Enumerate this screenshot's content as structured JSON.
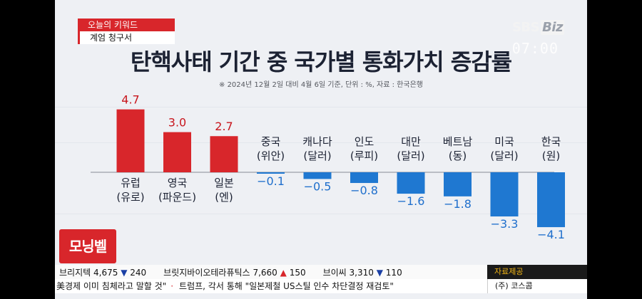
{
  "broadcast": {
    "keyword_label": "오늘의 키워드",
    "keyword": "계엄 청구서",
    "logo": "SBS",
    "logo_biz": "Biz",
    "clock": "07:00",
    "segment": "모닝벨"
  },
  "chart_data": {
    "type": "bar",
    "title": "탄핵사태 기간 중 국가별 통화가치 증감률",
    "note": "※ 2024년 12월 2일 대비 4월 6일 기준, 단위 : %, 자료 : 한국은행",
    "unit": "%",
    "categories": [
      {
        "line1": "유럽",
        "line2": "(유로)"
      },
      {
        "line1": "영국",
        "line2": "(파운드)"
      },
      {
        "line1": "일본",
        "line2": "(엔)"
      },
      {
        "line1": "중국",
        "line2": "(위안)"
      },
      {
        "line1": "캐나다",
        "line2": "(달러)"
      },
      {
        "line1": "인도",
        "line2": "(루피)"
      },
      {
        "line1": "대만",
        "line2": "(달러)"
      },
      {
        "line1": "베트남",
        "line2": "(동)"
      },
      {
        "line1": "미국",
        "line2": "(달러)"
      },
      {
        "line1": "한국",
        "line2": "(원)"
      }
    ],
    "values": [
      4.7,
      3.0,
      2.7,
      -0.1,
      -0.5,
      -0.8,
      -1.6,
      -1.8,
      -3.3,
      -4.1
    ],
    "value_labels": [
      "4.7",
      "3.0",
      "2.7",
      "−0.1",
      "−0.5",
      "−0.8",
      "−1.6",
      "−1.8",
      "−3.3",
      "−4.1"
    ],
    "colors": {
      "positive": "#d8262b",
      "negative": "#1f78d1",
      "positive_text": "#c8161d",
      "negative_text": "#1f6fcc"
    },
    "ylim": [
      -4.1,
      4.7
    ]
  },
  "ticker": {
    "items": [
      {
        "name": "브리지텍",
        "price": "4,675",
        "dir": "▼",
        "change": "240"
      },
      {
        "name": "브릿지바이오테라퓨틱스",
        "price": "7,660",
        "dir": "▲",
        "change": "150"
      },
      {
        "name": "브이씨",
        "price": "3,310",
        "dir": "▼",
        "change": "110"
      }
    ],
    "source_label": "자료제공",
    "source_value": "(주) 코스콤"
  },
  "news": {
    "items": [
      "美경제 이미 침체라고 말할 것\"",
      "트럼프, 각서 통해 \"일본제철 US스틸 인수 차단결정 재검토\""
    ]
  }
}
